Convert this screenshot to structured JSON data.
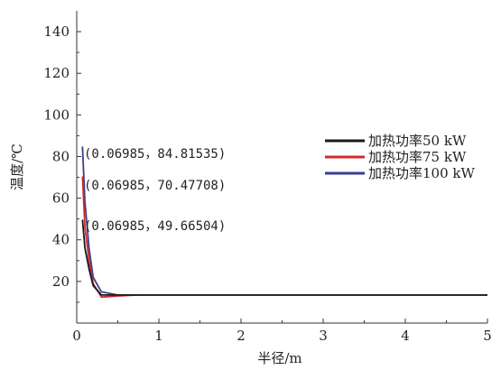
{
  "chart_data": {
    "type": "line",
    "xlabel": "半径/m",
    "ylabel": "温度/℃",
    "xlim": [
      0,
      5
    ],
    "ylim": [
      0,
      150
    ],
    "x_ticks": [
      "0",
      "1",
      "2",
      "3",
      "4",
      "5"
    ],
    "y_ticks": [
      "20",
      "40",
      "60",
      "80",
      "100",
      "120",
      "140"
    ],
    "grid": false,
    "legend_position": "right",
    "series": [
      {
        "name": "加热功率50 kW",
        "color": "#1a1a1a",
        "x": [
          0.06985,
          0.1,
          0.15,
          0.2,
          0.3,
          0.5,
          0.75,
          1,
          2,
          3,
          4,
          5
        ],
        "y": [
          49.66504,
          36,
          26,
          18,
          13.5,
          13.5,
          13.5,
          13.5,
          13.5,
          13.5,
          13.5,
          13.5
        ]
      },
      {
        "name": "加热功率75 kW",
        "color": "#d42a2a",
        "x": [
          0.06985,
          0.1,
          0.15,
          0.2,
          0.3,
          0.5,
          0.75,
          1,
          2,
          3,
          4,
          5
        ],
        "y": [
          70.47708,
          46,
          30,
          19,
          12.5,
          13,
          13.5,
          13.5,
          13.5,
          13.5,
          13.5,
          13.5
        ]
      },
      {
        "name": "加热功率100 kW",
        "color": "#3a3f8f",
        "x": [
          0.06985,
          0.1,
          0.15,
          0.2,
          0.3,
          0.5,
          0.75,
          1,
          2,
          3,
          4,
          5
        ],
        "y": [
          84.81535,
          58,
          36,
          22,
          15,
          13.5,
          13.5,
          13.5,
          13.5,
          13.5,
          13.5,
          13.5
        ]
      }
    ],
    "annotations": [
      "(0.06985，84.81535)",
      "(0.06985，70.47708)",
      "(0.06985，49.66504)"
    ]
  }
}
